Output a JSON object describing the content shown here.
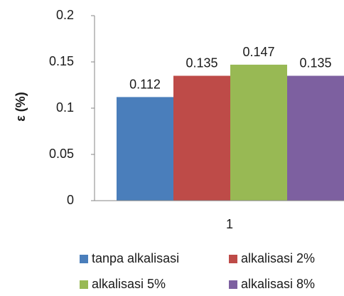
{
  "chart_data": {
    "type": "bar",
    "categories": [
      "1"
    ],
    "series": [
      {
        "name": "tanpa alkalisasi",
        "values": [
          0.112
        ],
        "label": "0.112",
        "color": "#4A7EBB"
      },
      {
        "name": "alkalisasi 2%",
        "values": [
          0.135
        ],
        "label": "0.135",
        "color": "#BE4B48"
      },
      {
        "name": "alkalisasi 5%",
        "values": [
          0.147
        ],
        "label": "0.147",
        "color": "#98B954"
      },
      {
        "name": "alkalisasi 8%",
        "values": [
          0.135
        ],
        "label": "0.135",
        "color": "#7D60A0"
      }
    ],
    "ylabel": "ε (%)",
    "xlabel": "",
    "ylim": [
      0,
      0.2
    ],
    "yticks": [
      0,
      0.05,
      0.1,
      0.15,
      0.2
    ],
    "ytick_labels": [
      "0",
      "0.05",
      "0.1",
      "0.15",
      "0.2"
    ],
    "grid": false,
    "legend_position": "bottom",
    "axis_color": "#868686"
  }
}
